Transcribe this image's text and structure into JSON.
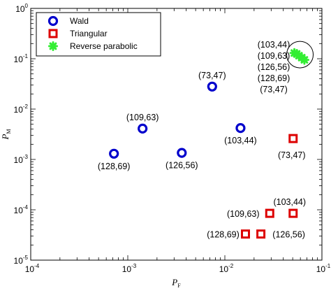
{
  "chart_data": {
    "type": "scatter",
    "x_axis": {
      "scale": "log",
      "lim": [
        0.0001,
        0.1
      ],
      "ticks": [
        {
          "value": 0.0001,
          "base": "10",
          "exp": "-4"
        },
        {
          "value": 0.001,
          "base": "10",
          "exp": "-3"
        },
        {
          "value": 0.01,
          "base": "10",
          "exp": "-2"
        },
        {
          "value": 0.1,
          "base": "10",
          "exp": "-1"
        }
      ],
      "label": "P",
      "label_sub": "F"
    },
    "y_axis": {
      "scale": "log",
      "lim": [
        1e-05,
        1
      ],
      "ticks": [
        {
          "value": 1e-05,
          "base": "10",
          "exp": "-5"
        },
        {
          "value": 0.0001,
          "base": "10",
          "exp": "-4"
        },
        {
          "value": 0.001,
          "base": "10",
          "exp": "-3"
        },
        {
          "value": 0.01,
          "base": "10",
          "exp": "-2"
        },
        {
          "value": 0.1,
          "base": "10",
          "exp": "-1"
        },
        {
          "value": 1,
          "base": "10",
          "exp": "0"
        }
      ],
      "label": "P",
      "label_sub": "M"
    },
    "grid": false,
    "legend_position": "top-left",
    "series": [
      {
        "name": "Wald",
        "marker": "circle",
        "color": "#0000cc",
        "points": [
          {
            "x": 0.00072,
            "y": 0.0013,
            "label": "(128,69)"
          },
          {
            "x": 0.00142,
            "y": 0.0041,
            "label": "(109,63)"
          },
          {
            "x": 0.0036,
            "y": 0.00135,
            "label": "(126,56)"
          },
          {
            "x": 0.0074,
            "y": 0.028,
            "label": "(73,47)"
          },
          {
            "x": 0.0145,
            "y": 0.0042,
            "label": "(103,44)"
          }
        ]
      },
      {
        "name": "Triangular",
        "marker": "square",
        "color": "#dd0000",
        "points": [
          {
            "x": 0.0505,
            "y": 0.0026,
            "label": "(73,47)"
          },
          {
            "x": 0.029,
            "y": 8.5e-05,
            "label": "(109,63)"
          },
          {
            "x": 0.0505,
            "y": 8.5e-05,
            "label": "(103,44)"
          },
          {
            "x": 0.0163,
            "y": 3.3e-05,
            "label": "(128,69)"
          },
          {
            "x": 0.0235,
            "y": 3.3e-05,
            "label": "(126,56)"
          }
        ]
      },
      {
        "name": "Reverse parabolic",
        "marker": "star",
        "color": "#33ee33",
        "points": [
          {
            "x": 0.052,
            "y": 0.13
          },
          {
            "x": 0.055,
            "y": 0.125
          },
          {
            "x": 0.058,
            "y": 0.115
          },
          {
            "x": 0.062,
            "y": 0.105
          },
          {
            "x": 0.066,
            "y": 0.095
          }
        ]
      }
    ],
    "annotations": {
      "cluster_ellipse": true,
      "cluster_labels": [
        "(103,44)",
        "(109,63)",
        "(126,56)",
        "(128,69)",
        "(73,47)"
      ]
    }
  }
}
